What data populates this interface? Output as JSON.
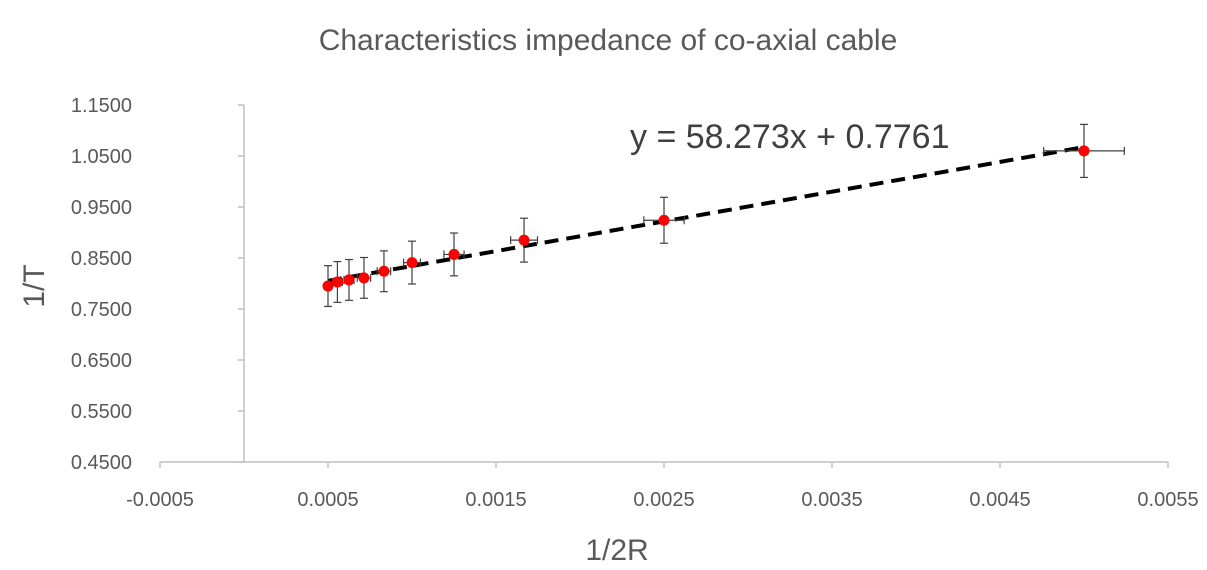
{
  "chart_data": {
    "type": "scatter",
    "title": "Characteristics impedance of co-axial cable",
    "xlabel": "1/2R",
    "ylabel": "1/T",
    "xlim": [
      -0.0005,
      0.0055
    ],
    "ylim": [
      0.45,
      1.15
    ],
    "x_ticks": [
      -0.0005,
      0.0005,
      0.0015,
      0.0025,
      0.0035,
      0.0045,
      0.0055
    ],
    "x_tick_labels": [
      "-0.0005",
      "0.0005",
      "0.0015",
      "0.0025",
      "0.0035",
      "0.0045",
      "0.0055"
    ],
    "y_ticks": [
      0.45,
      0.55,
      0.65,
      0.75,
      0.85,
      0.95,
      1.05,
      1.15
    ],
    "y_tick_labels": [
      "0.4500",
      "0.5500",
      "0.6500",
      "0.7500",
      "0.8500",
      "0.9500",
      "1.0500",
      "1.1500"
    ],
    "grid": false,
    "series": [
      {
        "points": [
          {
            "x": 0.0005,
            "y": 0.795,
            "yerr": 0.04,
            "xerr": 2e-05
          },
          {
            "x": 0.000556,
            "y": 0.803,
            "yerr": 0.04,
            "xerr": 3e-05
          },
          {
            "x": 0.000625,
            "y": 0.807,
            "yerr": 0.04,
            "xerr": 3e-05
          },
          {
            "x": 0.000714,
            "y": 0.811,
            "yerr": 0.04,
            "xerr": 4e-05
          },
          {
            "x": 0.000833,
            "y": 0.824,
            "yerr": 0.04,
            "xerr": 4e-05
          },
          {
            "x": 0.001,
            "y": 0.841,
            "yerr": 0.042,
            "xerr": 5e-05
          },
          {
            "x": 0.00125,
            "y": 0.857,
            "yerr": 0.042,
            "xerr": 6e-05
          },
          {
            "x": 0.001667,
            "y": 0.885,
            "yerr": 0.043,
            "xerr": 8e-05
          },
          {
            "x": 0.0025,
            "y": 0.924,
            "yerr": 0.045,
            "xerr": 0.00012
          },
          {
            "x": 0.005,
            "y": 1.06,
            "yerr": 0.052,
            "xerr": 0.00024
          }
        ],
        "marker_color": "#ff0000",
        "errorbar_color": "#404040"
      }
    ],
    "trendline": {
      "slope": 58.273,
      "intercept": 0.7761,
      "x_range": [
        0.0005,
        0.005
      ],
      "equation": "y = 58.273x + 0.7761",
      "color": "#000000"
    }
  }
}
